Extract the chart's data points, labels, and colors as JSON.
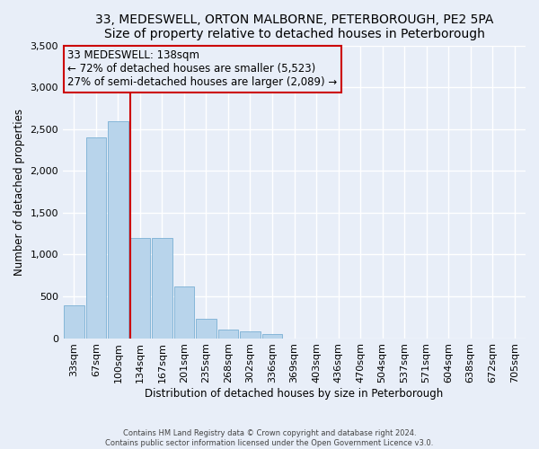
{
  "title": "33, MEDESWELL, ORTON MALBORNE, PETERBOROUGH, PE2 5PA",
  "subtitle": "Size of property relative to detached houses in Peterborough",
  "xlabel": "Distribution of detached houses by size in Peterborough",
  "ylabel": "Number of detached properties",
  "footnote1": "Contains HM Land Registry data © Crown copyright and database right 2024.",
  "footnote2": "Contains public sector information licensed under the Open Government Licence v3.0.",
  "bar_labels": [
    "33sqm",
    "67sqm",
    "100sqm",
    "134sqm",
    "167sqm",
    "201sqm",
    "235sqm",
    "268sqm",
    "302sqm",
    "336sqm",
    "369sqm",
    "403sqm",
    "436sqm",
    "470sqm",
    "504sqm",
    "537sqm",
    "571sqm",
    "604sqm",
    "638sqm",
    "672sqm",
    "705sqm"
  ],
  "bar_values": [
    390,
    2400,
    2590,
    1200,
    1200,
    620,
    230,
    100,
    80,
    50,
    0,
    0,
    0,
    0,
    0,
    0,
    0,
    0,
    0,
    0,
    0
  ],
  "property_bar_index": 3,
  "annotation_text1": "33 MEDESWELL: 138sqm",
  "annotation_text2": "← 72% of detached houses are smaller (5,523)",
  "annotation_text3": "27% of semi-detached houses are larger (2,089) →",
  "bar_color": "#b8d4eb",
  "bar_edge_color": "#7aafd4",
  "annotation_box_color": "#cc0000",
  "vline_color": "#cc0000",
  "ylim": [
    0,
    3500
  ],
  "yticks": [
    0,
    500,
    1000,
    1500,
    2000,
    2500,
    3000,
    3500
  ],
  "background_color": "#e8eef8",
  "grid_color": "#ffffff",
  "title_fontsize": 10,
  "axis_fontsize": 8.5,
  "tick_fontsize": 8
}
